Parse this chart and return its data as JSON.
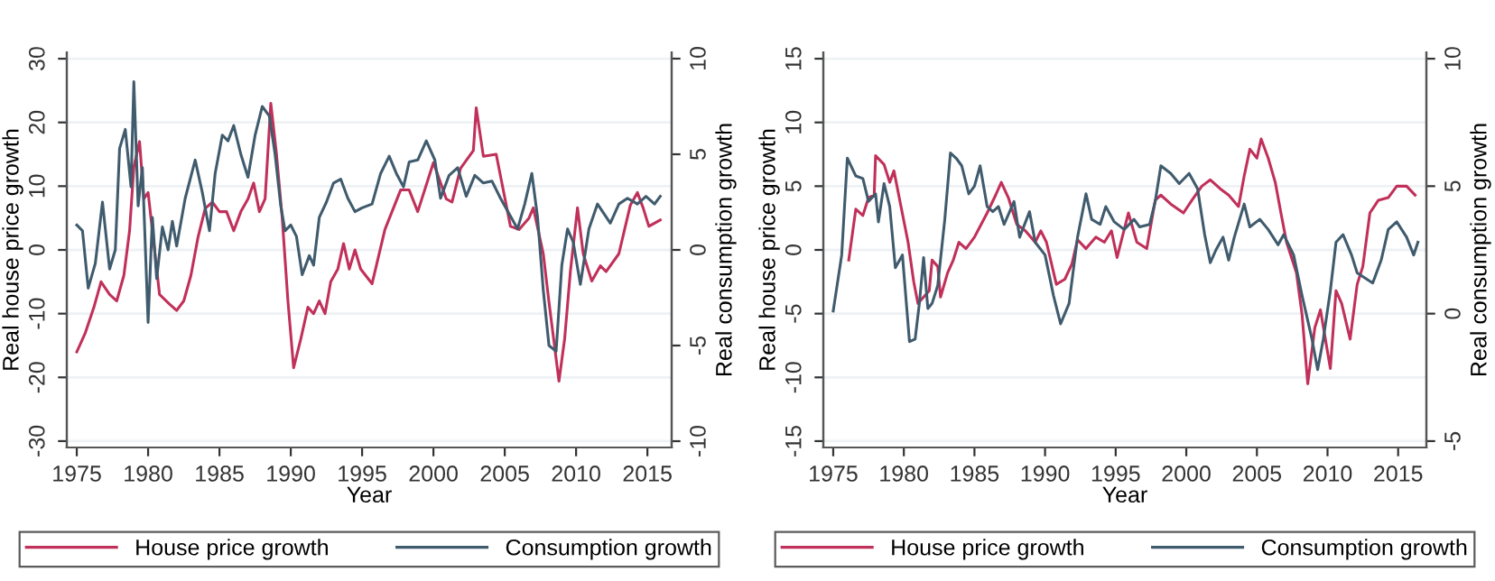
{
  "chart_data": [
    {
      "type": "line",
      "xlabel": "Year",
      "ylabel": "Real house price growth",
      "y2label": "Real consumption growth",
      "xlim": [
        1974.3,
        2016.7
      ],
      "xticks": [
        1975,
        1980,
        1985,
        1990,
        1995,
        2000,
        2005,
        2010,
        2015
      ],
      "ylim": [
        -31,
        31
      ],
      "yticks": [
        -30,
        -20,
        -10,
        0,
        10,
        20,
        30
      ],
      "y2lim": [
        -10.33,
        10.33
      ],
      "y2ticks": [
        -10,
        -5,
        0,
        5,
        10
      ],
      "grid": "y",
      "legend": "bottom",
      "series": [
        {
          "name": "House price growth",
          "color": "#c0305a",
          "x": [
            1975.0,
            1975.6,
            1976.2,
            1976.7,
            1977.3,
            1977.8,
            1978.3,
            1978.7,
            1979.0,
            1979.4,
            1979.7,
            1980.0,
            1980.4,
            1980.8,
            1981.5,
            1982.0,
            1982.5,
            1983.0,
            1983.5,
            1984.0,
            1984.5,
            1985.0,
            1985.5,
            1986.0,
            1986.5,
            1987.0,
            1987.4,
            1987.8,
            1988.2,
            1988.6,
            1989.0,
            1989.4,
            1989.8,
            1990.2,
            1990.7,
            1991.2,
            1991.6,
            1992.0,
            1992.4,
            1992.8,
            1993.3,
            1993.7,
            1994.1,
            1994.5,
            1994.9,
            1995.7,
            1996.6,
            1997.7,
            1998.3,
            1998.9,
            2000.0,
            2000.9,
            2001.3,
            2001.9,
            2002.8,
            2003.0,
            2003.5,
            2004.4,
            2005.4,
            2006.0,
            2006.7,
            2007.0,
            2007.7,
            2008.1,
            2008.8,
            2009.2,
            2009.6,
            2010.1,
            2010.5,
            2011.1,
            2011.7,
            2012.1,
            2013.0,
            2013.8,
            2014.3,
            2014.7,
            2015.1,
            2015.9
          ],
          "values": [
            -16,
            -13,
            -9,
            -5,
            -7,
            -8,
            -4,
            3,
            13,
            17,
            8,
            9,
            1,
            -7,
            -8.5,
            -9.5,
            -8,
            -4,
            2,
            6.5,
            7.5,
            6,
            6,
            3,
            6,
            8,
            10.5,
            6,
            8,
            23,
            15,
            5,
            -8,
            -18.5,
            -14,
            -9,
            -10,
            -8,
            -10,
            -5,
            -3,
            1,
            -3,
            0,
            -3,
            -5.3,
            3.2,
            9.4,
            9.4,
            6,
            13.7,
            8,
            7.5,
            12.8,
            15.6,
            22.3,
            14.7,
            15,
            3.7,
            3.2,
            5,
            6.6,
            -0.6,
            -8.2,
            -20.6,
            -13.9,
            -3.4,
            6.6,
            -0.6,
            -4.9,
            -2.5,
            -3.4,
            -0.6,
            7,
            9,
            6.6,
            3.7,
            4.7
          ]
        },
        {
          "name": "Consumption growth",
          "color": "#3f5b6d",
          "axis": "y2",
          "x": [
            1975.0,
            1975.4,
            1975.8,
            1976.3,
            1976.8,
            1977.3,
            1977.7,
            1978.0,
            1978.4,
            1978.8,
            1979.0,
            1979.3,
            1979.6,
            1980.0,
            1980.3,
            1980.6,
            1981.0,
            1981.4,
            1981.7,
            1982.0,
            1982.6,
            1983.3,
            1983.8,
            1984.3,
            1984.7,
            1985.2,
            1985.6,
            1986.0,
            1986.5,
            1987.0,
            1987.5,
            1988.0,
            1988.5,
            1988.9,
            1989.3,
            1989.6,
            1990.0,
            1990.4,
            1990.8,
            1991.3,
            1991.6,
            1992.0,
            1992.5,
            1993.0,
            1993.5,
            1994.0,
            1994.5,
            1995.0,
            1995.7,
            1996.3,
            1996.9,
            1997.4,
            1997.9,
            1998.3,
            1998.9,
            1999.5,
            2000.1,
            2000.5,
            2001.1,
            2001.7,
            2002.3,
            2002.9,
            2003.5,
            2004.1,
            2004.7,
            2005.3,
            2005.9,
            2006.4,
            2006.9,
            2007.3,
            2007.7,
            2008.1,
            2008.6,
            2009.0,
            2009.4,
            2009.8,
            2010.3,
            2010.9,
            2011.5,
            2012.4,
            2013.0,
            2013.6,
            2014.3,
            2014.9,
            2015.5,
            2015.9
          ],
          "values": [
            1.3,
            1,
            -2,
            -0.7,
            2.5,
            -1,
            0,
            5.3,
            6.3,
            3.3,
            8.8,
            2.3,
            4.3,
            -3.8,
            1.7,
            -1.5,
            1.2,
            0,
            1.5,
            0.2,
            2.7,
            4.7,
            3,
            1,
            4,
            6,
            5.7,
            6.5,
            5,
            3.8,
            6,
            7.5,
            7,
            5,
            2.3,
            1,
            1.3,
            0.7,
            -1.3,
            -0.3,
            -0.8,
            1.7,
            2.5,
            3.5,
            3.7,
            2.7,
            2,
            2.2,
            2.4,
            4.0,
            4.9,
            4.0,
            3.3,
            4.6,
            4.7,
            5.7,
            4.7,
            2.7,
            3.9,
            4.3,
            2.8,
            3.9,
            3.5,
            3.6,
            2.7,
            1.9,
            1.1,
            2.4,
            4.0,
            1.7,
            -2.1,
            -5.0,
            -5.3,
            -0.8,
            1.1,
            0.4,
            -1.8,
            1.1,
            2.4,
            1.4,
            2.4,
            2.7,
            2.4,
            2.8,
            2.4,
            2.8
          ]
        }
      ]
    },
    {
      "type": "line",
      "xlabel": "Year",
      "ylabel": "Real house price growth",
      "y2label": "Real consumption growth",
      "xlim": [
        1974.3,
        2017.0
      ],
      "xticks": [
        1975,
        1980,
        1985,
        1990,
        1995,
        2000,
        2005,
        2010,
        2015
      ],
      "ylim": [
        -15.5,
        15.5
      ],
      "yticks": [
        -15,
        -10,
        -5,
        0,
        5,
        10,
        15
      ],
      "y2lim": [
        -5.25,
        10.25
      ],
      "y2ticks": [
        -5,
        0,
        5,
        10
      ],
      "grid": "y",
      "legend": "bottom",
      "series": [
        {
          "name": "House price growth",
          "color": "#c0305a",
          "x": [
            1976.1,
            1976.6,
            1977.1,
            1977.5,
            1977.9,
            1978.0,
            1978.6,
            1979.0,
            1979.3,
            1979.8,
            1980.3,
            1980.7,
            1981.0,
            1981.4,
            1981.8,
            1982.0,
            1982.4,
            1982.6,
            1983.1,
            1983.5,
            1983.9,
            1984.4,
            1985.0,
            1985.9,
            1986.5,
            1986.9,
            1987.4,
            1988.0,
            1988.6,
            1989.3,
            1989.7,
            1990.1,
            1990.8,
            1991.4,
            1991.9,
            1992.3,
            1992.9,
            1993.6,
            1994.2,
            1994.7,
            1995.1,
            1995.9,
            1996.5,
            1997.2,
            1997.8,
            1998.2,
            1998.9,
            1999.8,
            2000.4,
            2001.1,
            2001.7,
            2002.4,
            2003.0,
            2003.7,
            2004.1,
            2004.5,
            2005.0,
            2005.3,
            2005.8,
            2006.3,
            2006.7,
            2007.1,
            2007.8,
            2008.2,
            2008.6,
            2009.1,
            2009.5,
            2010.2,
            2010.6,
            2011.0,
            2011.6,
            2012.1,
            2012.5,
            2013.0,
            2013.6,
            2014.3,
            2014.9,
            2015.6,
            2016.2
          ],
          "values": [
            -0.8,
            3.2,
            2.7,
            4.1,
            4.3,
            7.4,
            6.7,
            5.3,
            6.2,
            3.4,
            0.6,
            -2.5,
            -4.2,
            -3.7,
            -3.2,
            -0.8,
            -1.3,
            -3.7,
            -1.8,
            -0.8,
            0.6,
            0.1,
            1.0,
            2.9,
            4.3,
            5.3,
            4.1,
            2.0,
            1.5,
            0.6,
            1.5,
            0.6,
            -2.7,
            -2.3,
            -1.1,
            0.8,
            0.1,
            1.0,
            0.6,
            1.5,
            -0.6,
            2.9,
            0.6,
            0.1,
            3.9,
            4.3,
            3.6,
            2.9,
            3.9,
            5.0,
            5.5,
            4.8,
            4.3,
            3.4,
            5.8,
            7.9,
            7.2,
            8.7,
            7.2,
            5.3,
            2.9,
            0.6,
            -1.8,
            -5.1,
            -10.5,
            -6.1,
            -4.7,
            -9.3,
            -3.2,
            -4.2,
            -7.0,
            -2.7,
            -1.3,
            2.9,
            3.9,
            4.1,
            5.0,
            5.0,
            4.3
          ]
        },
        {
          "name": "Consumption growth",
          "color": "#3f5b6d",
          "axis": "y2",
          "x": [
            1975.0,
            1975.6,
            1976.0,
            1976.6,
            1977.1,
            1977.5,
            1978.0,
            1978.2,
            1978.6,
            1979.0,
            1979.4,
            1979.9,
            1980.4,
            1980.8,
            1981.1,
            1981.4,
            1981.7,
            1982.0,
            1982.4,
            1982.9,
            1983.3,
            1983.7,
            1984.1,
            1984.6,
            1985.0,
            1985.4,
            1985.9,
            1986.3,
            1986.7,
            1987.1,
            1987.8,
            1988.2,
            1988.9,
            1989.3,
            1990.0,
            1990.6,
            1991.1,
            1991.7,
            1992.3,
            1992.9,
            1993.3,
            1993.9,
            1994.3,
            1994.9,
            1995.6,
            1996.3,
            1996.7,
            1997.4,
            1997.8,
            1998.2,
            1998.9,
            1999.5,
            2000.2,
            2000.8,
            2001.3,
            2001.7,
            2002.1,
            2002.6,
            2003.0,
            2003.4,
            2004.1,
            2004.5,
            2005.2,
            2005.8,
            2006.5,
            2006.9,
            2007.6,
            2008.2,
            2008.9,
            2009.3,
            2009.7,
            2010.2,
            2010.6,
            2011.1,
            2011.7,
            2012.1,
            2013.2,
            2013.8,
            2014.3,
            2014.9,
            2015.6,
            2016.1,
            2016.4
          ],
          "values": [
            0.1,
            2.3,
            6.1,
            5.4,
            5.3,
            4.4,
            4.7,
            3.6,
            5.1,
            4.2,
            1.8,
            2.3,
            -1.1,
            -1.0,
            0.4,
            2.2,
            0.2,
            0.4,
            1.1,
            3.7,
            6.3,
            6.1,
            5.8,
            4.7,
            5.0,
            5.8,
            4.2,
            4.0,
            4.2,
            3.5,
            4.4,
            3.0,
            4.0,
            2.8,
            2.3,
            0.7,
            -0.4,
            0.4,
            3.0,
            4.7,
            3.7,
            3.5,
            4.2,
            3.6,
            3.3,
            3.7,
            3.4,
            3.5,
            4.4,
            5.8,
            5.5,
            5.1,
            5.5,
            4.9,
            3.1,
            2.0,
            2.5,
            3.0,
            2.1,
            3.0,
            4.3,
            3.4,
            3.7,
            3.3,
            2.7,
            3.1,
            2.3,
            0.7,
            -1.0,
            -2.2,
            -1.0,
            0.9,
            2.8,
            3.1,
            2.3,
            1.6,
            1.2,
            2.1,
            3.3,
            3.6,
            3.0,
            2.3,
            2.8
          ]
        }
      ]
    }
  ]
}
